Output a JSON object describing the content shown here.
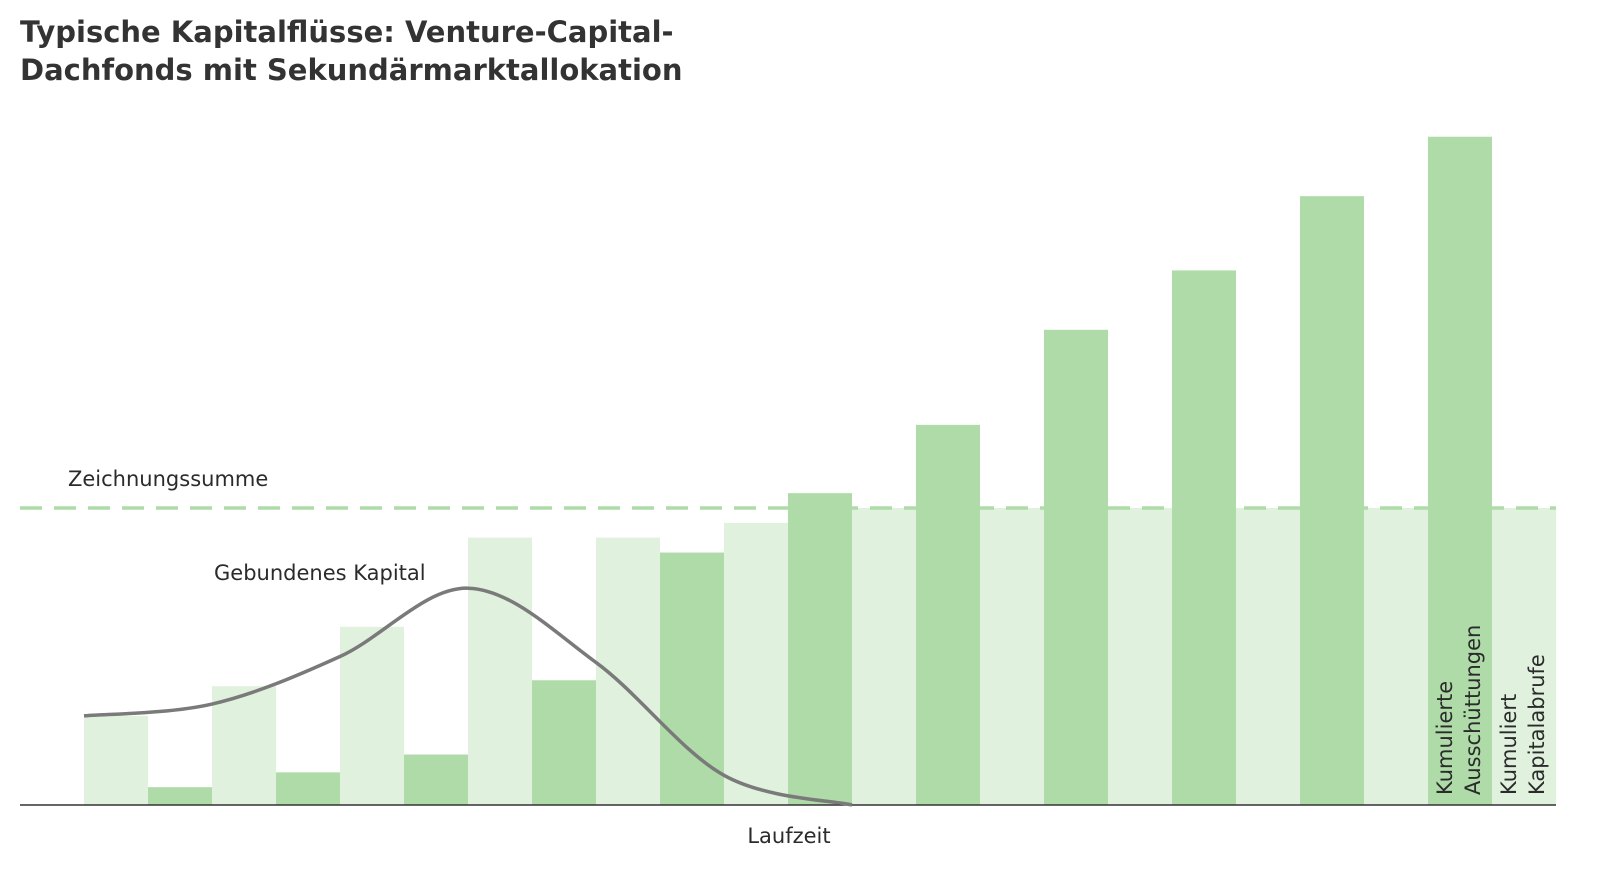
{
  "chart_data": {
    "type": "bar",
    "title": "Typische Kapitalflüsse: Venture-Capital-Dachfonds mit Sekundärmarktallokation",
    "x_label": "Laufzeit",
    "categories": [
      null,
      null,
      null,
      null,
      null,
      null,
      null,
      null,
      null,
      null,
      null,
      null
    ],
    "series": [
      {
        "name": "Kumulierte Ausschüttungen",
        "color": "#aedba8",
        "values": [
          0,
          6,
          11,
          17,
          42,
          85,
          105,
          128,
          160,
          180,
          205,
          225
        ]
      },
      {
        "name": "Kumuliert Kapitalabrufe",
        "color": "#e0f1de",
        "values": [
          30,
          40,
          60,
          90,
          90,
          95,
          100,
          100,
          100,
          100,
          100,
          100
        ]
      }
    ],
    "line_series": {
      "name": "Gebundenes Kapital",
      "color": "#7a7a7a",
      "values": [
        30,
        34,
        50,
        73,
        48,
        10,
        0,
        null,
        null,
        null,
        null,
        null
      ]
    },
    "reference": {
      "label": "Zeichnungssumme",
      "value": 100,
      "color": "#aedba8"
    },
    "ylim": [
      0,
      240
    ]
  }
}
